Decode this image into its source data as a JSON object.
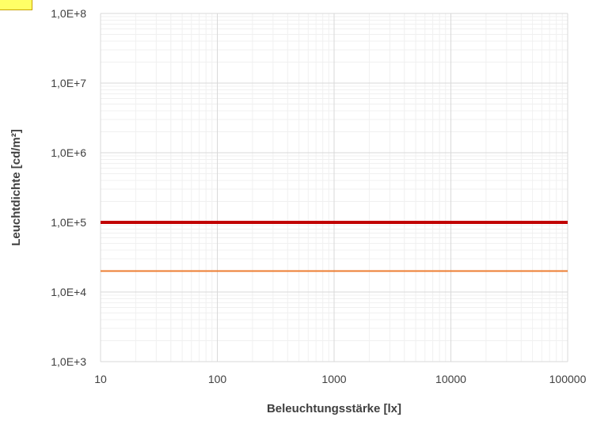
{
  "chart_data": {
    "type": "line",
    "xlabel": "Beleuchtungsstärke [lx]",
    "ylabel": "Leuchtdichte [cd/m²]",
    "xscale": "log",
    "yscale": "log",
    "xlim": [
      10,
      100000
    ],
    "ylim": [
      1000,
      100000000
    ],
    "x_tick_labels": [
      "10",
      "100",
      "1000",
      "10000",
      "100000"
    ],
    "y_tick_labels": [
      "1,0E+3",
      "1,0E+4",
      "1,0E+5",
      "1,0E+6",
      "1,0E+7",
      "1,0E+8"
    ],
    "grid": true,
    "minor_grid": true,
    "legend": "none",
    "series": [
      {
        "x": [
          10,
          100000
        ],
        "values": [
          100000,
          100000
        ],
        "color": "#c00000"
      },
      {
        "x": [
          10,
          100000
        ],
        "values": [
          20000,
          20000
        ],
        "color": "#ed7d31"
      }
    ]
  },
  "colors": {
    "background": "#ffffff",
    "major_grid": "#d9d9d9",
    "minor_grid": "#f0f0f0",
    "corner_box": "#ffff66"
  }
}
